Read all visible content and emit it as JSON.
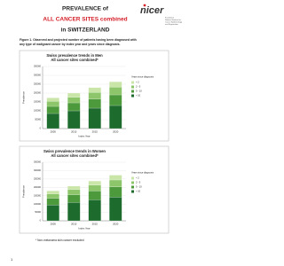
{
  "header": {
    "title_line1": "PREVALENCE of",
    "title_line2": "ALL CANCER SITES combined",
    "title_line3": "in SWITZERLAND",
    "logo": "nicer",
    "logo_text": [
      "Foundation",
      "National Institute for",
      "Cancer Epidemiology",
      "and Registration"
    ]
  },
  "caption": [
    "Figure 1. Observed and projected number of patients having been diagnosed with",
    "any type of malignant cancer by index year and years since diagnosis."
  ],
  "chart_data": [
    {
      "type": "bar",
      "stacked": true,
      "title": "Swiss prevalence trends in Men",
      "subtitle": "All cancer sites combined*",
      "x_label": "Index Year",
      "y_label": "Prevalence",
      "legend_title": "Years since diagnosis",
      "categories": [
        "2005",
        "2010",
        "2015",
        "2020"
      ],
      "series": [
        {
          "name": "> 10",
          "color": "#1e6b2e",
          "values": [
            85000,
            100000,
            115000,
            130000
          ]
        },
        {
          "name": "5 - 10",
          "color": "#4d9a3c",
          "values": [
            40000,
            45000,
            52000,
            60000
          ]
        },
        {
          "name": "2 - 5",
          "color": "#8cc56a",
          "values": [
            28000,
            32000,
            37000,
            43000
          ]
        },
        {
          "name": "< 2",
          "color": "#c9e5a8",
          "values": [
            20000,
            23000,
            27000,
            31000
          ]
        }
      ],
      "ylim": [
        0,
        350000
      ],
      "yticks": [
        0,
        50000,
        100000,
        150000,
        200000,
        250000,
        300000,
        350000
      ],
      "grid": true
    },
    {
      "type": "bar",
      "stacked": true,
      "title": "Swiss prevalence trends in Women",
      "subtitle": "All cancer sites combined*",
      "x_label": "Index Year",
      "y_label": "Prevalence",
      "legend_title": "Years since diagnosis",
      "categories": [
        "2005",
        "2010",
        "2015",
        "2020"
      ],
      "series": [
        {
          "name": "> 10",
          "color": "#1e6b2e",
          "values": [
            95000,
            110000,
            125000,
            142000
          ]
        },
        {
          "name": "5 - 10",
          "color": "#4d9a3c",
          "values": [
            40000,
            46000,
            53000,
            61000
          ]
        },
        {
          "name": "2 - 5",
          "color": "#8cc56a",
          "values": [
            26000,
            30000,
            35000,
            41000
          ]
        },
        {
          "name": "< 2",
          "color": "#c9e5a8",
          "values": [
            18000,
            21000,
            25000,
            29000
          ]
        }
      ],
      "ylim": [
        0,
        350000
      ],
      "yticks": [
        0,
        50000,
        100000,
        150000,
        200000,
        250000,
        300000,
        350000
      ],
      "grid": true
    }
  ],
  "footnote": "* Non-melanoma skin cancer excluded",
  "page_number": "1"
}
